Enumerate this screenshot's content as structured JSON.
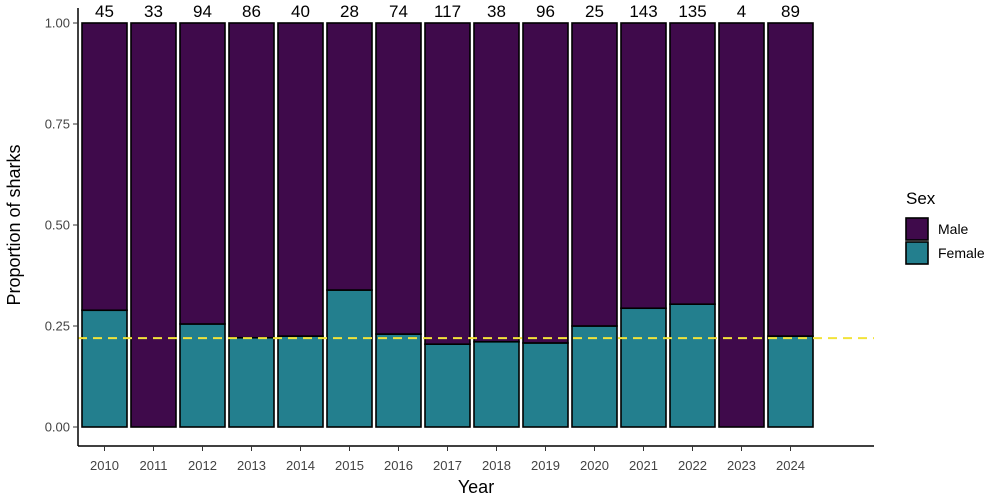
{
  "chart_data": {
    "type": "bar",
    "stacked": true,
    "xlabel": "Year",
    "ylabel": "Proportion of sharks",
    "ylim": [
      0,
      1
    ],
    "yticks": [
      "0.00",
      "0.25",
      "0.50",
      "0.75",
      "1.00"
    ],
    "categories": [
      "2010",
      "2011",
      "2012",
      "2013",
      "2014",
      "2015",
      "2016",
      "2017",
      "2018",
      "2019",
      "2020",
      "2021",
      "2022",
      "2023",
      "2024"
    ],
    "counts": [
      "45",
      "33",
      "94",
      "86",
      "40",
      "28",
      "74",
      "117",
      "38",
      "96",
      "25",
      "143",
      "135",
      "4",
      "89"
    ],
    "series": [
      {
        "name": "Male",
        "color": "#3f0a4b",
        "values": [
          0.711,
          1.0,
          0.745,
          0.779,
          0.775,
          0.661,
          0.77,
          0.795,
          0.789,
          0.792,
          0.75,
          0.706,
          0.696,
          1.0,
          0.775
        ]
      },
      {
        "name": "Female",
        "color": "#237f8e",
        "values": [
          0.289,
          0.0,
          0.255,
          0.221,
          0.225,
          0.339,
          0.23,
          0.205,
          0.211,
          0.208,
          0.25,
          0.294,
          0.304,
          0.0,
          0.225
        ]
      }
    ],
    "reference_line": {
      "y": 0.22,
      "style": "dashed",
      "color": "#f2e33a"
    },
    "legend": {
      "title": "Sex",
      "position": "right",
      "items": [
        "Male",
        "Female"
      ]
    },
    "grid": false
  }
}
